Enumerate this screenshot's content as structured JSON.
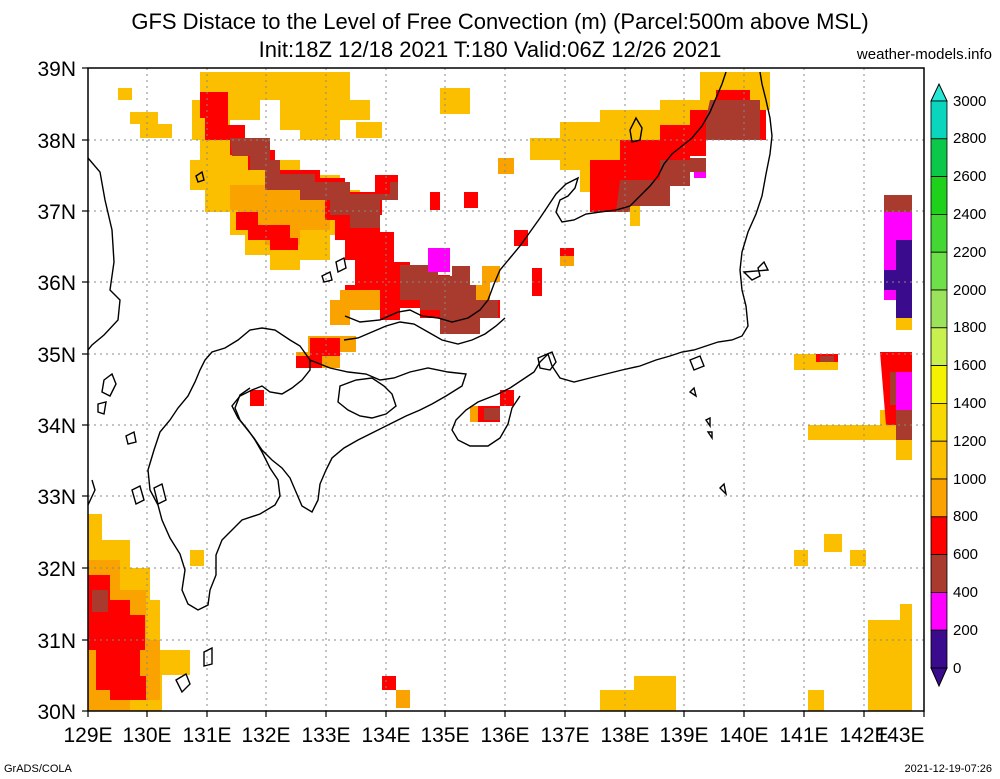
{
  "title": {
    "line1": "GFS Distace to the Level of Free Convection (m) (Parcel:500m above MSL)",
    "line2": "Init:18Z 12/18 2021 T:180 Valid:06Z 12/26 2021"
  },
  "site": "weather-models.info",
  "footer": {
    "left": "GrADS/COLA",
    "right": "2021-12-19-07:26"
  },
  "axes": {
    "lon_ticks": [
      "129E",
      "130E",
      "131E",
      "132E",
      "133E",
      "134E",
      "135E",
      "136E",
      "137E",
      "138E",
      "139E",
      "140E",
      "141E",
      "142E",
      "143E"
    ],
    "lat_ticks": [
      "39N",
      "38N",
      "37N",
      "36N",
      "35N",
      "34N",
      "33N",
      "32N",
      "31N",
      "30N"
    ],
    "lon_range": [
      129,
      143
    ],
    "lat_range": [
      30,
      39
    ]
  },
  "colorbar": {
    "labels": [
      "3000",
      "2800",
      "2600",
      "2400",
      "2200",
      "2000",
      "1800",
      "1600",
      "1400",
      "1200",
      "1000",
      "800",
      "600",
      "400",
      "200",
      "0"
    ],
    "colors": [
      "#27e6d6",
      "#0ad6bd",
      "#0cc84a",
      "#1ed21c",
      "#43d734",
      "#6ee04a",
      "#9ae35a",
      "#c8f04f",
      "#f4f200",
      "#f8d800",
      "#fbbf00",
      "#f9a200",
      "#ff0000",
      "#a83a2e",
      "#ff00ff",
      "#3a0b8d"
    ]
  },
  "chart_data": {
    "type": "heatmap",
    "title": "GFS Distace to the Level of Free Convection (m) (Parcel:500m above MSL)",
    "units": "m",
    "levels": [
      0,
      200,
      400,
      600,
      800,
      1000,
      1200,
      1400,
      1600,
      1800,
      2000,
      2200,
      2400,
      2600,
      2800,
      3000
    ],
    "cells": [
      {
        "lon": 129.6,
        "lat": 38.6,
        "v": 1000
      },
      {
        "lon": 130.0,
        "lat": 38.4,
        "v": 600
      },
      {
        "lon": 130.3,
        "lat": 38.2,
        "v": 1000
      },
      {
        "lon": 130.7,
        "lat": 38.4,
        "v": 1000
      },
      {
        "lon": 131.0,
        "lat": 38.8,
        "v": 1000
      },
      {
        "lon": 131.4,
        "lat": 38.5,
        "v": 600
      },
      {
        "lon": 131.5,
        "lat": 38.0,
        "v": 600
      },
      {
        "lon": 131.8,
        "lat": 37.8,
        "v": 400
      },
      {
        "lon": 132.2,
        "lat": 38.2,
        "v": 1000
      },
      {
        "lon": 132.6,
        "lat": 38.6,
        "v": 1000
      },
      {
        "lon": 133.0,
        "lat": 38.4,
        "v": 1000
      },
      {
        "lon": 133.4,
        "lat": 38.2,
        "v": 1000
      },
      {
        "lon": 132.2,
        "lat": 37.8,
        "v": 400
      },
      {
        "lon": 132.0,
        "lat": 37.4,
        "v": 1000
      },
      {
        "lon": 132.5,
        "lat": 37.2,
        "v": 600
      },
      {
        "lon": 132.8,
        "lat": 36.9,
        "v": 1000
      },
      {
        "lon": 133.2,
        "lat": 37.3,
        "v": 400
      },
      {
        "lon": 133.6,
        "lat": 37.0,
        "v": 400
      },
      {
        "lon": 133.4,
        "lat": 36.6,
        "v": 600
      },
      {
        "lon": 133.8,
        "lat": 36.4,
        "v": 600
      },
      {
        "lon": 134.2,
        "lat": 36.0,
        "v": 600
      },
      {
        "lon": 134.6,
        "lat": 36.0,
        "v": 400
      },
      {
        "lon": 135.0,
        "lat": 35.8,
        "v": 400
      },
      {
        "lon": 135.4,
        "lat": 35.6,
        "v": 400
      },
      {
        "lon": 134.9,
        "lat": 36.3,
        "v": 200
      },
      {
        "lon": 135.6,
        "lat": 36.1,
        "v": 800
      },
      {
        "lon": 133.8,
        "lat": 35.6,
        "v": 600
      },
      {
        "lon": 134.3,
        "lat": 35.5,
        "v": 600
      },
      {
        "lon": 133.3,
        "lat": 35.0,
        "v": 400
      },
      {
        "lon": 133.0,
        "lat": 34.9,
        "v": 600
      },
      {
        "lon": 131.9,
        "lat": 34.3,
        "v": 600
      },
      {
        "lon": 136.0,
        "lat": 34.4,
        "v": 600
      },
      {
        "lon": 135.6,
        "lat": 34.1,
        "v": 600
      },
      {
        "lon": 134.2,
        "lat": 30.4,
        "v": 600
      },
      {
        "lon": 134.4,
        "lat": 30.2,
        "v": 800
      },
      {
        "lon": 137.6,
        "lat": 37.8,
        "v": 1000
      },
      {
        "lon": 138.0,
        "lat": 37.6,
        "v": 600
      },
      {
        "lon": 138.4,
        "lat": 37.4,
        "v": 400
      },
      {
        "lon": 138.8,
        "lat": 37.2,
        "v": 400
      },
      {
        "lon": 138.2,
        "lat": 37.1,
        "v": 600
      },
      {
        "lon": 139.4,
        "lat": 37.6,
        "v": 400
      },
      {
        "lon": 139.8,
        "lat": 38.6,
        "v": 1000
      },
      {
        "lon": 140.2,
        "lat": 38.4,
        "v": 400
      },
      {
        "lon": 140.0,
        "lat": 38.8,
        "v": 1000
      },
      {
        "lon": 142.8,
        "lat": 36.4,
        "v": 200
      },
      {
        "lon": 142.8,
        "lat": 36.0,
        "v": 0
      },
      {
        "lon": 142.8,
        "lat": 34.4,
        "v": 200
      },
      {
        "lon": 142.6,
        "lat": 34.0,
        "v": 400
      },
      {
        "lon": 142.0,
        "lat": 33.9,
        "v": 1000
      },
      {
        "lon": 141.2,
        "lat": 34.9,
        "v": 600
      },
      {
        "lon": 129.3,
        "lat": 31.4,
        "v": 600
      },
      {
        "lon": 129.6,
        "lat": 30.8,
        "v": 600
      },
      {
        "lon": 129.4,
        "lat": 30.4,
        "v": 600
      },
      {
        "lon": 129.4,
        "lat": 32.0,
        "v": 1000
      },
      {
        "lon": 129.8,
        "lat": 31.2,
        "v": 1000
      },
      {
        "lon": 138.2,
        "lat": 30.2,
        "v": 1000
      },
      {
        "lon": 138.8,
        "lat": 30.3,
        "v": 1000
      },
      {
        "lon": 142.6,
        "lat": 31.0,
        "v": 1000
      },
      {
        "lon": 142.0,
        "lat": 32.3,
        "v": 1000
      }
    ]
  }
}
